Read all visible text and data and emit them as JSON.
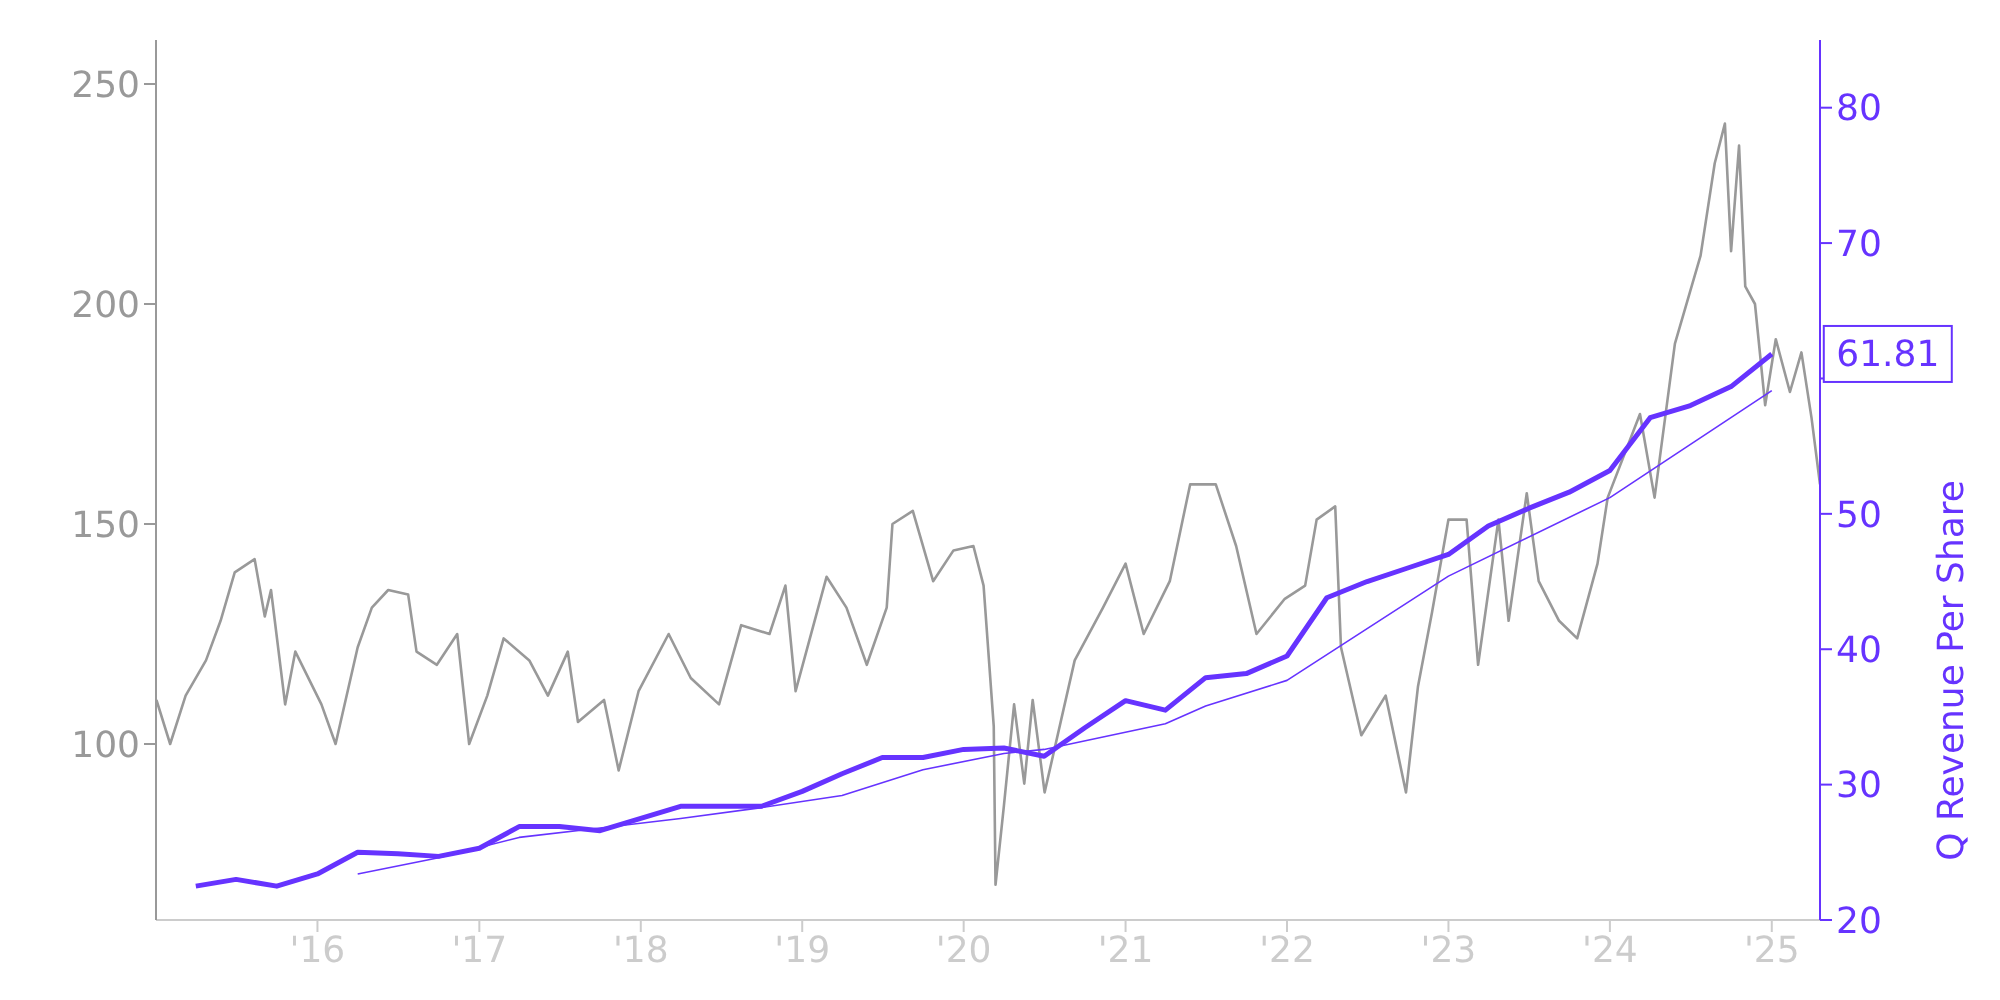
{
  "chart_data": {
    "type": "line",
    "y2label": "Q Revenue Per Share",
    "xlim": [
      "2015-01-01",
      "2025-04-20"
    ],
    "xticks": [
      {
        "value": "2016-01-01",
        "label": "'16"
      },
      {
        "value": "2017-01-01",
        "label": "'17"
      },
      {
        "value": "2018-01-01",
        "label": "'18"
      },
      {
        "value": "2019-01-01",
        "label": "'19"
      },
      {
        "value": "2020-01-01",
        "label": "'20"
      },
      {
        "value": "2021-01-01",
        "label": "'21"
      },
      {
        "value": "2022-01-01",
        "label": "'22"
      },
      {
        "value": "2023-01-01",
        "label": "'23"
      },
      {
        "value": "2024-01-01",
        "label": "'24"
      },
      {
        "value": "2025-01-01",
        "label": "'25"
      }
    ],
    "ylim": [
      60,
      260
    ],
    "yticks": [
      100,
      150,
      200,
      250
    ],
    "y2lim": [
      20,
      85
    ],
    "y2ticks": [
      20,
      30,
      40,
      50,
      {
        "value": 60,
        "label": null
      },
      70,
      80
    ],
    "series": [
      {
        "color": "#999999",
        "x": [
          "2015-01-02",
          "2015-02-02",
          "2015-03-09",
          "2015-04-24",
          "2015-05-27",
          "2015-06-28",
          "2015-08-12",
          "2015-09-04",
          "2015-09-18",
          "2015-10-20",
          "2015-11-12",
          "2016-01-10",
          "2016-02-11",
          "2016-04-01",
          "2016-05-03",
          "2016-06-09",
          "2016-07-24",
          "2016-08-12",
          "2016-09-27",
          "2016-11-12",
          "2016-12-09",
          "2017-01-19",
          "2017-02-25",
          "2017-04-24",
          "2017-06-05",
          "2017-07-20",
          "2017-08-12",
          "2017-10-10",
          "2017-11-12",
          "2017-12-27",
          "2018-03-05",
          "2018-04-24",
          "2018-06-27",
          "2018-08-16",
          "2018-10-19",
          "2018-11-24",
          "2018-12-17",
          "2019-02-25",
          "2019-04-11",
          "2019-05-27",
          "2019-07-11",
          "2019-07-24",
          "2019-09-08",
          "2019-10-24",
          "2019-12-09",
          "2020-01-23",
          "2020-02-15",
          "2020-03-09",
          "2020-03-13",
          "2020-04-01",
          "2020-04-24",
          "2020-05-17",
          "2020-06-05",
          "2020-07-02",
          "2020-09-08",
          "2020-11-11",
          "2021-01-01",
          "2021-02-11",
          "2021-04-11",
          "2021-05-27",
          "2021-07-24",
          "2021-09-08",
          "2021-10-24",
          "2021-12-27",
          "2022-02-11",
          "2022-03-09",
          "2022-04-20",
          "2022-05-03",
          "2022-06-18",
          "2022-08-12",
          "2022-09-27",
          "2022-10-24",
          "2022-11-25",
          "2023-01-01",
          "2023-02-11",
          "2023-03-09",
          "2023-04-24",
          "2023-05-17",
          "2023-06-27",
          "2023-07-24",
          "2023-09-08",
          "2023-10-19",
          "2023-12-04",
          "2023-12-27",
          "2024-03-09",
          "2024-04-11",
          "2024-05-27",
          "2024-07-24",
          "2024-08-25",
          "2024-09-17",
          "2024-10-01",
          "2024-10-19",
          "2024-11-02",
          "2024-11-24",
          "2024-12-17",
          "2025-01-10",
          "2025-02-11",
          "2025-03-09",
          "2025-04-01",
          "2025-04-20"
        ],
        "values": [
          110,
          100,
          111,
          119,
          128,
          139,
          142,
          129,
          135,
          109,
          121,
          109,
          100,
          122,
          131,
          135,
          134,
          121,
          118,
          125,
          100,
          111,
          124,
          119,
          111,
          121,
          105,
          110,
          94,
          112,
          125,
          115,
          109,
          127,
          125,
          136,
          112,
          138,
          131,
          118,
          131,
          150,
          153,
          137,
          144,
          145,
          136,
          104,
          68,
          86,
          109,
          91,
          110,
          89,
          119,
          131,
          141,
          125,
          137,
          159,
          159,
          145,
          125,
          133,
          136,
          151,
          154,
          122,
          102,
          111,
          89,
          113,
          130,
          151,
          151,
          118,
          151,
          128,
          157,
          137,
          128,
          124,
          141,
          156,
          175,
          156,
          191,
          211,
          232,
          241,
          212,
          236,
          204,
          200,
          177,
          192,
          180,
          189,
          174,
          159
        ]
      },
      {
        "color": "#6633ff",
        "axis": "y2",
        "x": [
          "2015-04-01",
          "2015-07-01",
          "2015-10-01",
          "2016-01-01",
          "2016-04-01",
          "2016-07-01",
          "2016-10-01",
          "2017-01-01",
          "2017-04-01",
          "2017-07-01",
          "2017-10-01",
          "2018-01-01",
          "2018-04-01",
          "2018-07-01",
          "2018-10-01",
          "2019-01-01",
          "2019-04-01",
          "2019-07-01",
          "2019-10-01",
          "2020-01-01",
          "2020-04-01",
          "2020-07-01",
          "2020-10-01",
          "2021-01-01",
          "2021-04-01",
          "2021-07-01",
          "2021-10-01",
          "2022-01-01",
          "2022-04-01",
          "2022-07-01",
          "2022-10-01",
          "2023-01-01",
          "2023-04-01",
          "2023-07-01",
          "2023-10-01",
          "2024-01-01",
          "2024-04-01",
          "2024-07-01",
          "2024-10-01",
          "2025-01-01"
        ],
        "values": [
          22.5,
          23,
          22.5,
          23.4,
          25,
          24.9,
          24.7,
          25.3,
          26.9,
          26.9,
          26.6,
          27.5,
          28.4,
          28.4,
          28.4,
          29.5,
          30.8,
          32,
          32,
          32.6,
          32.7,
          32.1,
          34.2,
          36.2,
          35.5,
          37.9,
          38.2,
          39.5,
          43.8,
          45,
          46,
          47,
          49.1,
          50.4,
          51.6,
          53.2,
          57.1,
          58,
          59.4,
          61.81
        ],
        "value_labels": [
          null,
          null,
          null,
          null,
          null,
          null,
          null,
          null,
          null,
          null,
          null,
          null,
          null,
          null,
          null,
          null,
          null,
          null,
          null,
          null,
          null,
          null,
          null,
          null,
          null,
          null,
          null,
          null,
          null,
          null,
          null,
          null,
          null,
          null,
          null,
          null,
          null,
          null,
          null,
          "61.81"
        ]
      },
      {
        "color": "#6633ff",
        "axis": "y2",
        "x": [
          "2016-04-01",
          "2016-10-01",
          "2017-04-01",
          "2017-10-01",
          "2018-04-01",
          "2018-10-01",
          "2019-04-01",
          "2019-10-01",
          "2020-04-01",
          "2020-07-01",
          "2021-04-01",
          "2021-07-01",
          "2022-01-01",
          "2023-01-01",
          "2024-01-01",
          "2025-01-01"
        ],
        "values": [
          23.4,
          24.6,
          26.1,
          26.8,
          27.5,
          28.3,
          29.2,
          31.1,
          32.3,
          32.6,
          34.5,
          35.8,
          37.7,
          45.4,
          51.2,
          59.1
        ]
      }
    ]
  }
}
